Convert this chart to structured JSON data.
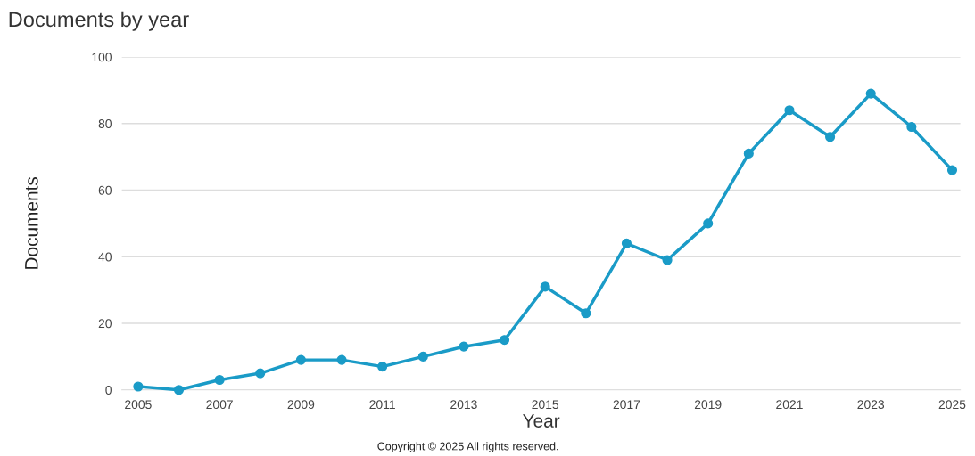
{
  "chart_data": {
    "type": "line",
    "title": "Documents by year",
    "xlabel": "Year",
    "ylabel": "Documents",
    "x": [
      2005,
      2006,
      2007,
      2008,
      2009,
      2010,
      2011,
      2012,
      2013,
      2014,
      2015,
      2016,
      2017,
      2018,
      2019,
      2020,
      2021,
      2022,
      2023,
      2024,
      2025
    ],
    "series": [
      {
        "color": "#1a9bc7",
        "values": [
          1,
          0,
          3,
          5,
          9,
          9,
          7,
          10,
          13,
          15,
          31,
          23,
          44,
          39,
          50,
          71,
          84,
          76,
          89,
          79,
          66
        ]
      }
    ],
    "xlim": [
      2004.6,
      2025.2
    ],
    "xticks": [
      2005,
      2007,
      2009,
      2011,
      2013,
      2015,
      2017,
      2019,
      2021,
      2023,
      2025
    ],
    "ylim": [
      0,
      100
    ],
    "yticks": [
      0,
      20,
      40,
      60,
      80,
      100
    ],
    "grid": "y",
    "marker": "circle",
    "line_style": "solid",
    "annotations": [
      "Copyright © 2025 All rights reserved."
    ]
  }
}
